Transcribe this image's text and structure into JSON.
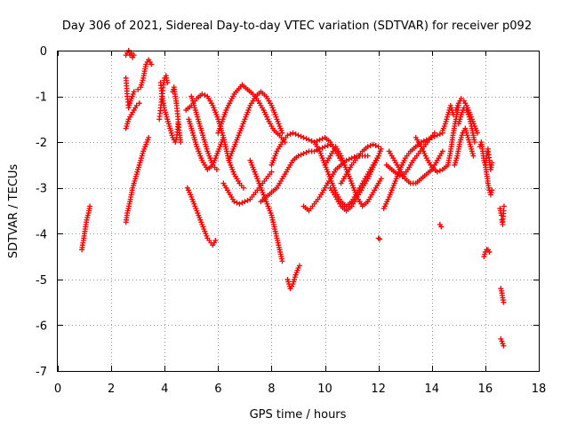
{
  "chart_data": {
    "type": "scatter",
    "title": "Day 306 of 2021, Sidereal Day-to-day VTEC variation (SDTVAR) for receiver p092",
    "xlabel": "GPS time / hours",
    "ylabel": "SDTVAR / TECUs",
    "xlim": [
      0,
      18
    ],
    "ylim": [
      -7,
      0
    ],
    "xticks": [
      0,
      2,
      4,
      6,
      8,
      10,
      12,
      14,
      16,
      18
    ],
    "yticks": [
      0,
      -1,
      -2,
      -3,
      -4,
      -5,
      -6,
      -7
    ],
    "xtick_labels": [
      "0",
      "2",
      "4",
      "6",
      "8",
      "10",
      "12",
      "14",
      "16",
      "18"
    ],
    "ytick_labels": [
      "0",
      "-1",
      "-2",
      "-3",
      "-4",
      "-5",
      "-6",
      "-7"
    ],
    "grid": true,
    "marker": "+",
    "color": "#ff0000",
    "series": [
      {
        "name": "s1",
        "x": [
          0.9,
          1.0,
          1.05,
          1.1,
          1.15,
          1.2
        ],
        "y": [
          -4.35,
          -4.0,
          -3.8,
          -3.65,
          -3.55,
          -3.4
        ]
      },
      {
        "name": "s2",
        "x": [
          2.55,
          2.6,
          2.65,
          2.7,
          2.75,
          2.8,
          2.85
        ],
        "y": [
          -0.1,
          -0.05,
          0.0,
          -0.1,
          -0.05,
          -0.15,
          -0.1
        ]
      },
      {
        "name": "s3",
        "x": [
          2.55,
          2.6,
          2.65,
          2.75,
          2.85,
          3.0,
          3.1,
          3.2,
          3.3,
          3.4,
          3.5
        ],
        "y": [
          -0.6,
          -1.0,
          -1.25,
          -1.05,
          -0.9,
          -0.85,
          -0.8,
          -0.6,
          -0.3,
          -0.2,
          -0.3
        ]
      },
      {
        "name": "s4",
        "x": [
          2.55,
          2.65,
          2.75,
          2.85,
          2.95,
          3.05
        ],
        "y": [
          -1.7,
          -1.5,
          -1.4,
          -1.3,
          -1.2,
          -1.15
        ]
      },
      {
        "name": "s5",
        "x": [
          2.55,
          2.6,
          2.7,
          2.8,
          2.9,
          3.0,
          3.1,
          3.2,
          3.3,
          3.4
        ],
        "y": [
          -3.75,
          -3.55,
          -3.3,
          -3.0,
          -2.8,
          -2.6,
          -2.4,
          -2.2,
          -2.05,
          -1.9
        ]
      },
      {
        "name": "s6",
        "x": [
          3.8,
          3.85,
          3.9,
          3.95,
          4.0,
          4.05,
          4.1
        ],
        "y": [
          -1.5,
          -1.25,
          -1.0,
          -0.75,
          -0.6,
          -0.55,
          -0.7
        ]
      },
      {
        "name": "s7",
        "x": [
          3.85,
          3.9,
          4.0,
          4.1,
          4.2,
          4.3,
          4.4,
          4.45,
          4.5
        ],
        "y": [
          -0.7,
          -1.0,
          -1.3,
          -1.5,
          -1.7,
          -1.9,
          -2.0,
          -1.9,
          -1.6
        ]
      },
      {
        "name": "s8",
        "x": [
          4.3,
          4.35,
          4.4,
          4.45,
          4.5,
          4.55,
          4.6
        ],
        "y": [
          -0.9,
          -0.8,
          -1.0,
          -1.2,
          -1.5,
          -1.8,
          -2.0
        ]
      },
      {
        "name": "s9",
        "x": [
          4.8,
          5.0,
          5.2,
          5.4,
          5.6,
          5.8,
          6.0,
          6.2,
          6.4,
          6.6,
          6.8,
          6.95
        ],
        "y": [
          -1.3,
          -1.2,
          -1.05,
          -0.95,
          -1.0,
          -1.2,
          -1.5,
          -1.9,
          -2.4,
          -2.7,
          -2.9,
          -3.0
        ]
      },
      {
        "name": "s10",
        "x": [
          4.9,
          5.05,
          5.2,
          5.4,
          5.6,
          5.8,
          6.0,
          6.2
        ],
        "y": [
          -1.5,
          -1.8,
          -2.1,
          -2.4,
          -2.6,
          -2.5,
          -2.2,
          -1.9
        ]
      },
      {
        "name": "s11",
        "x": [
          5.0,
          5.2,
          5.4,
          5.6,
          5.8,
          5.95
        ],
        "y": [
          -1.0,
          -1.4,
          -1.8,
          -2.2,
          -2.5,
          -2.6
        ]
      },
      {
        "name": "s12",
        "x": [
          4.85,
          5.0,
          5.2,
          5.4,
          5.6,
          5.8,
          5.9
        ],
        "y": [
          -3.0,
          -3.2,
          -3.5,
          -3.8,
          -4.1,
          -4.25,
          -4.15
        ]
      },
      {
        "name": "s13",
        "x": [
          6.0,
          6.3,
          6.6,
          6.9,
          7.1,
          7.3,
          7.5,
          7.7,
          7.9,
          8.1,
          8.3,
          8.5
        ],
        "y": [
          -1.8,
          -1.3,
          -0.95,
          -0.75,
          -0.85,
          -0.95,
          -1.1,
          -1.3,
          -1.55,
          -1.75,
          -1.85,
          -2.0
        ]
      },
      {
        "name": "s14",
        "x": [
          6.4,
          6.6,
          6.8,
          7.0,
          7.2,
          7.4,
          7.6,
          7.8,
          8.0,
          8.2,
          8.4
        ],
        "y": [
          -2.4,
          -2.1,
          -1.8,
          -1.5,
          -1.2,
          -1.0,
          -0.9,
          -1.0,
          -1.2,
          -1.5,
          -1.8
        ]
      },
      {
        "name": "s15",
        "x": [
          6.2,
          6.4,
          6.6,
          6.8,
          7.0,
          7.2,
          7.4,
          7.6,
          7.8,
          8.0
        ],
        "y": [
          -2.9,
          -3.1,
          -3.3,
          -3.35,
          -3.3,
          -3.25,
          -3.1,
          -2.95,
          -2.8,
          -2.65
        ]
      },
      {
        "name": "s16",
        "x": [
          7.2,
          7.4,
          7.6,
          7.8,
          8.0,
          8.2,
          8.4
        ],
        "y": [
          -2.4,
          -2.7,
          -3.0,
          -3.3,
          -3.6,
          -4.1,
          -4.6
        ]
      },
      {
        "name": "s17",
        "x": [
          7.6,
          7.8,
          8.0,
          8.2,
          8.4,
          8.6,
          8.8,
          9.0,
          9.2,
          9.4,
          9.6,
          9.8,
          10.0,
          10.2
        ],
        "y": [
          -3.3,
          -3.2,
          -3.1,
          -3.0,
          -2.8,
          -2.6,
          -2.4,
          -2.3,
          -2.25,
          -2.2,
          -2.2,
          -2.15,
          -2.1,
          -2.05
        ]
      },
      {
        "name": "s18",
        "x": [
          8.0,
          8.2,
          8.4,
          8.6,
          8.8,
          9.0,
          9.2,
          9.4,
          9.6,
          9.8,
          10.0,
          10.2,
          10.4,
          10.6
        ],
        "y": [
          -2.5,
          -2.2,
          -2.0,
          -1.85,
          -1.8,
          -1.85,
          -1.9,
          -1.95,
          -2.0,
          -1.95,
          -1.9,
          -2.0,
          -2.2,
          -2.4
        ]
      },
      {
        "name": "s19",
        "x": [
          8.6,
          8.7,
          8.8,
          8.9,
          9.0,
          9.05
        ],
        "y": [
          -5.0,
          -5.2,
          -5.1,
          -4.9,
          -4.75,
          -4.7
        ]
      },
      {
        "name": "s20",
        "x": [
          9.2,
          9.4,
          9.6,
          9.8,
          10.0,
          10.2,
          10.4,
          10.6,
          10.8,
          11.0,
          11.2,
          11.4,
          11.6
        ],
        "y": [
          -3.4,
          -3.5,
          -3.35,
          -3.2,
          -3.0,
          -2.8,
          -2.6,
          -2.5,
          -2.4,
          -2.35,
          -2.3,
          -2.3,
          -2.3
        ]
      },
      {
        "name": "s21",
        "x": [
          9.6,
          9.8,
          10.0,
          10.2,
          10.4,
          10.6,
          10.8,
          11.0,
          11.2,
          11.4,
          11.6,
          11.8,
          12.0
        ],
        "y": [
          -2.0,
          -2.2,
          -2.5,
          -2.8,
          -3.1,
          -3.3,
          -3.4,
          -3.3,
          -3.1,
          -2.9,
          -2.7,
          -2.5,
          -2.3
        ]
      },
      {
        "name": "s22",
        "x": [
          10.0,
          10.2,
          10.4,
          10.6,
          10.8,
          11.0,
          11.2,
          11.4,
          11.6,
          11.8,
          12.0,
          12.1
        ],
        "y": [
          -2.5,
          -2.3,
          -2.1,
          -2.3,
          -2.6,
          -2.9,
          -3.2,
          -3.4,
          -3.3,
          -3.1,
          -2.9,
          -2.8
        ]
      },
      {
        "name": "s23",
        "x": [
          10.2,
          10.4,
          10.6,
          10.8,
          11.0,
          11.2,
          11.4,
          11.6,
          11.8,
          12.0,
          12.1
        ],
        "y": [
          -3.0,
          -3.2,
          -3.4,
          -3.5,
          -3.4,
          -3.2,
          -3.0,
          -2.8,
          -2.55,
          -2.3,
          -2.15
        ]
      },
      {
        "name": "s24",
        "x": [
          10.6,
          10.8,
          11.0,
          11.2,
          11.4,
          11.6,
          11.8,
          12.0
        ],
        "y": [
          -2.9,
          -2.7,
          -2.5,
          -2.35,
          -2.2,
          -2.1,
          -2.05,
          -2.1
        ]
      },
      {
        "name": "s25",
        "x": [
          12.0,
          12.05
        ],
        "y": [
          -4.1,
          -4.12
        ]
      },
      {
        "name": "s26",
        "x": [
          12.2,
          12.4,
          12.6,
          12.8,
          13.0,
          13.2,
          13.4,
          13.6,
          13.8,
          14.0,
          14.2,
          14.4
        ],
        "y": [
          -3.45,
          -3.2,
          -2.9,
          -2.6,
          -2.35,
          -2.2,
          -2.1,
          -2.0,
          -1.95,
          -1.9,
          -1.85,
          -1.8
        ]
      },
      {
        "name": "s27",
        "x": [
          12.3,
          12.5,
          12.7,
          12.9,
          13.1,
          13.3,
          13.5,
          13.7,
          13.9,
          14.1
        ],
        "y": [
          -2.5,
          -2.6,
          -2.7,
          -2.75,
          -2.6,
          -2.4,
          -2.25,
          -2.1,
          -1.95,
          -1.8
        ]
      },
      {
        "name": "s28",
        "x": [
          12.4,
          12.6,
          12.8,
          13.0,
          13.2,
          13.4,
          13.6,
          13.8,
          14.0,
          14.2,
          14.4
        ],
        "y": [
          -2.2,
          -2.4,
          -2.6,
          -2.8,
          -2.9,
          -2.9,
          -2.8,
          -2.7,
          -2.6,
          -2.4,
          -2.2
        ]
      },
      {
        "name": "s29",
        "x": [
          13.4,
          13.6,
          13.8,
          14.0,
          14.2,
          14.4,
          14.6,
          14.7,
          14.8,
          14.9,
          15.0
        ],
        "y": [
          -1.9,
          -2.1,
          -2.35,
          -2.55,
          -2.65,
          -2.6,
          -2.5,
          -2.2,
          -1.8,
          -1.5,
          -1.2
        ]
      },
      {
        "name": "s30",
        "x": [
          14.3,
          14.35
        ],
        "y": [
          -3.8,
          -3.85
        ]
      },
      {
        "name": "s31",
        "x": [
          14.4,
          14.5,
          14.6,
          14.7,
          14.8
        ],
        "y": [
          -1.75,
          -1.6,
          -1.4,
          -1.2,
          -1.4
        ]
      },
      {
        "name": "s32",
        "x": [
          14.85,
          14.95,
          15.05,
          15.15,
          15.25,
          15.35,
          15.45,
          15.55
        ],
        "y": [
          -2.5,
          -2.3,
          -2.0,
          -1.8,
          -1.7,
          -1.9,
          -2.1,
          -2.3
        ]
      },
      {
        "name": "s33",
        "x": [
          14.9,
          15.0,
          15.1,
          15.2,
          15.3,
          15.4,
          15.5,
          15.6,
          15.7
        ],
        "y": [
          -1.3,
          -1.15,
          -1.05,
          -1.1,
          -1.2,
          -1.35,
          -1.5,
          -1.65,
          -1.8
        ]
      },
      {
        "name": "s34",
        "x": [
          15.0,
          15.1,
          15.2,
          15.3,
          15.4,
          15.5,
          15.6
        ],
        "y": [
          -1.6,
          -1.4,
          -1.25,
          -1.3,
          -1.45,
          -1.7,
          -2.0
        ]
      },
      {
        "name": "s35",
        "x": [
          15.8,
          15.85,
          15.9,
          15.95,
          16.0,
          16.05,
          16.1,
          16.15,
          16.2,
          16.25
        ],
        "y": [
          -2.1,
          -2.0,
          -2.2,
          -2.4,
          -2.5,
          -2.3,
          -2.15,
          -2.4,
          -2.6,
          -2.45
        ]
      },
      {
        "name": "s36",
        "x": [
          16.0,
          16.05,
          16.1,
          16.15,
          16.2,
          16.25
        ],
        "y": [
          -2.5,
          -2.7,
          -2.9,
          -3.05,
          -3.15,
          -3.05
        ]
      },
      {
        "name": "s37",
        "x": [
          15.95,
          16.0,
          16.05,
          16.1,
          16.15
        ],
        "y": [
          -4.5,
          -4.4,
          -4.35,
          -4.35,
          -4.4
        ]
      },
      {
        "name": "s38",
        "x": [
          16.55,
          16.6,
          16.62,
          16.65,
          16.68,
          16.7
        ],
        "y": [
          -3.45,
          -3.6,
          -3.7,
          -3.8,
          -3.5,
          -3.4
        ]
      },
      {
        "name": "s39",
        "x": [
          16.58,
          16.62,
          16.65,
          16.68
        ],
        "y": [
          -5.2,
          -5.3,
          -5.4,
          -5.5
        ]
      },
      {
        "name": "s40",
        "x": [
          16.58,
          16.62,
          16.65,
          16.68
        ],
        "y": [
          -6.3,
          -6.35,
          -6.4,
          -6.45
        ]
      }
    ]
  }
}
